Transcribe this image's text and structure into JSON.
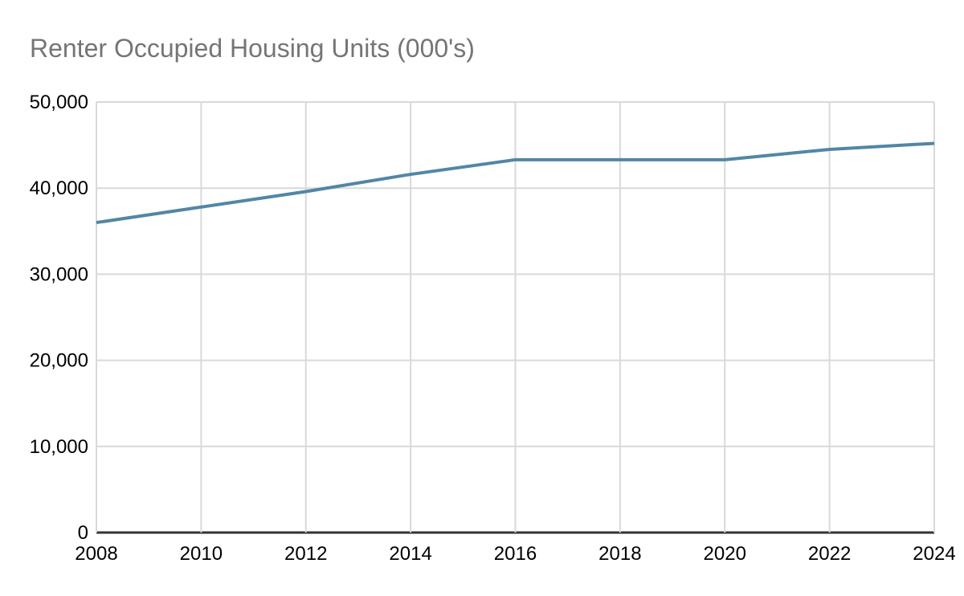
{
  "page": {
    "background_color": "#ffffff"
  },
  "chart_data": {
    "type": "line",
    "title": "Renter Occupied Housing Units (000's)",
    "xlabel": "",
    "ylabel": "",
    "x": [
      2008,
      2010,
      2012,
      2014,
      2016,
      2018,
      2020,
      2022,
      2024
    ],
    "series": [
      {
        "name": "Renter Occupied Housing Units (000's)",
        "values": [
          36000,
          37800,
          39600,
          41600,
          43300,
          43300,
          43300,
          44500,
          45200
        ]
      }
    ],
    "xlim": [
      2008,
      2024
    ],
    "ylim": [
      0,
      50000
    ],
    "x_ticks": [
      2008,
      2010,
      2012,
      2014,
      2016,
      2018,
      2020,
      2022,
      2024
    ],
    "y_ticks": [
      0,
      10000,
      20000,
      30000,
      40000,
      50000
    ],
    "grid": true,
    "legend": false,
    "colors": {
      "line": "#5286a5",
      "grid": "#d9d9d9",
      "baseline": "#333333",
      "title": "#757575",
      "tick_label": "#000000",
      "background": "#ffffff"
    }
  }
}
